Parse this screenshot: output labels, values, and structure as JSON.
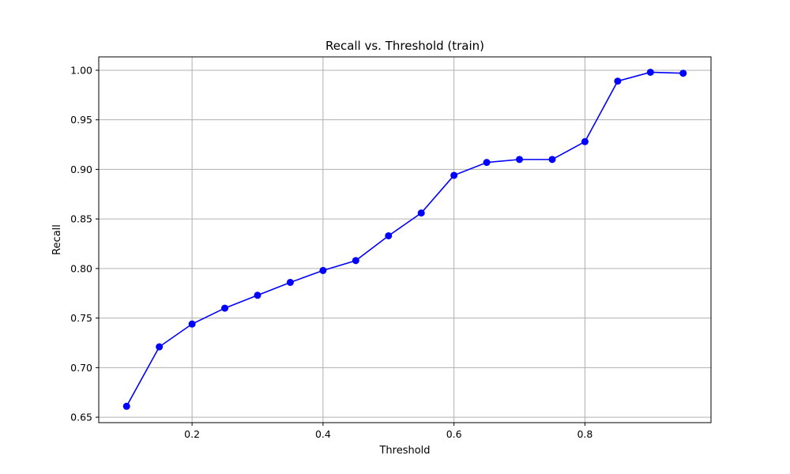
{
  "chart_data": {
    "type": "line",
    "title": "Recall vs. Threshold (train)",
    "xlabel": "Threshold",
    "ylabel": "Recall",
    "xlim": [
      0.0575,
      0.9925
    ],
    "ylim": [
      0.6445,
      1.0135
    ],
    "xticks": [
      0.2,
      0.4,
      0.6,
      0.8
    ],
    "xtick_labels": [
      "0.2",
      "0.4",
      "0.6",
      "0.8"
    ],
    "yticks": [
      0.65,
      0.7,
      0.75,
      0.8,
      0.85,
      0.9,
      0.95,
      1.0
    ],
    "ytick_labels": [
      "0.65",
      "0.70",
      "0.75",
      "0.80",
      "0.85",
      "0.90",
      "0.95",
      "1.00"
    ],
    "grid": true,
    "series": [
      {
        "color": "#0000ff",
        "marker": "circle",
        "x": [
          0.1,
          0.15,
          0.2,
          0.25,
          0.3,
          0.35,
          0.4,
          0.45,
          0.5,
          0.55,
          0.6,
          0.65,
          0.7,
          0.75,
          0.8,
          0.85,
          0.9,
          0.95
        ],
        "y": [
          0.661,
          0.721,
          0.744,
          0.76,
          0.773,
          0.786,
          0.798,
          0.808,
          0.833,
          0.856,
          0.894,
          0.907,
          0.91,
          0.91,
          0.928,
          0.989,
          0.998,
          0.997
        ]
      }
    ]
  }
}
